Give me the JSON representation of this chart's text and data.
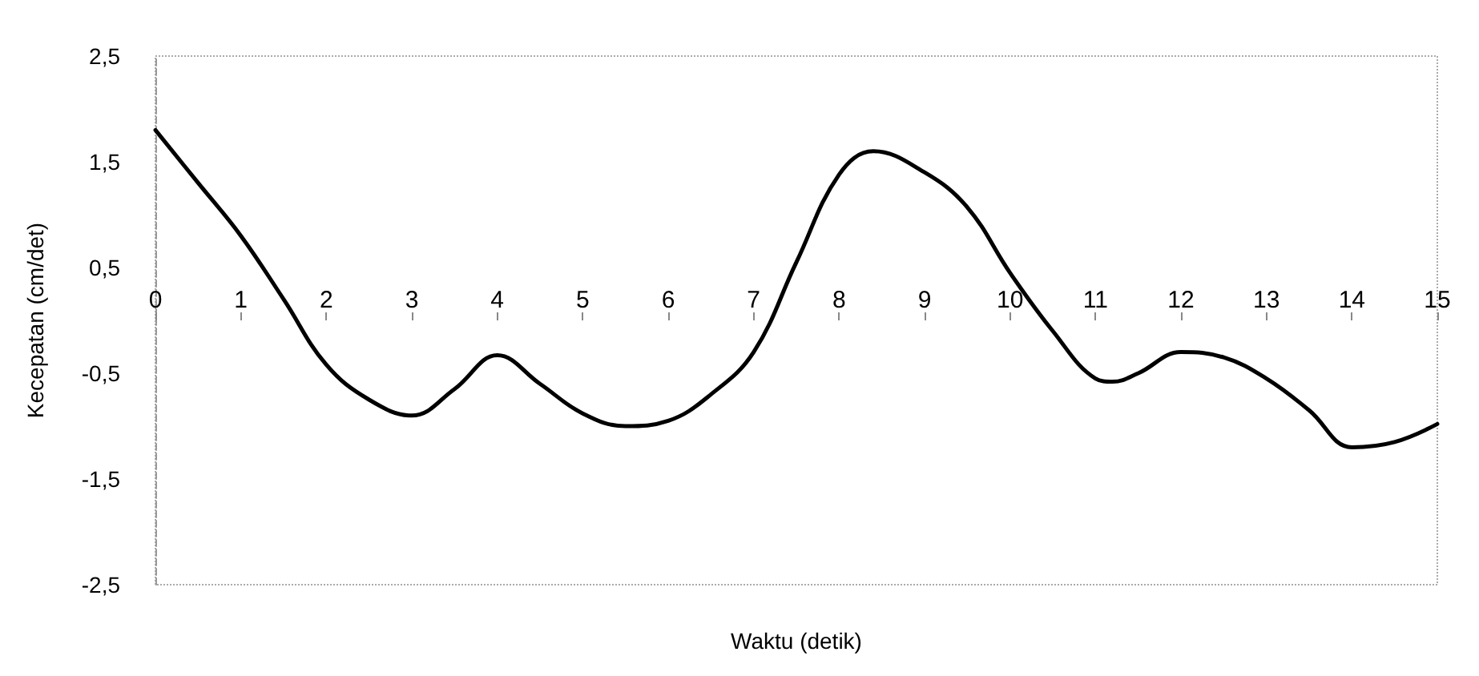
{
  "chart_data": {
    "type": "line",
    "xlabel": "Waktu (detik)",
    "ylabel": "Kecepatan (cm/det)",
    "x": [
      0,
      0.5,
      1,
      1.5,
      2,
      2.5,
      3,
      3.5,
      4,
      4.5,
      5,
      5.5,
      6,
      6.5,
      7,
      7.5,
      8,
      8.4,
      9,
      9.5,
      10,
      10.5,
      11,
      11.2,
      11.5,
      12,
      12.5,
      13,
      13.5,
      14,
      14.5,
      15
    ],
    "series": [
      {
        "color": "#000000",
        "values": [
          1.8,
          1.3,
          0.8,
          0.2,
          -0.42,
          -0.75,
          -0.9,
          -0.65,
          -0.33,
          -0.6,
          -0.88,
          -1.0,
          -0.95,
          -0.7,
          -0.3,
          0.55,
          1.38,
          1.6,
          1.4,
          1.07,
          0.45,
          -0.1,
          -0.55,
          -0.58,
          -0.5,
          -0.3,
          -0.35,
          -0.55,
          -0.85,
          -1.2,
          -1.15,
          -0.98
        ]
      }
    ],
    "xlim": [
      0,
      15
    ],
    "xticks": [
      0,
      1,
      2,
      3,
      4,
      5,
      6,
      7,
      8,
      9,
      10,
      11,
      12,
      13,
      14,
      15
    ],
    "ylim": [
      -2.5,
      2.5
    ],
    "yticks": [
      {
        "value": -2.5,
        "label": "-2,5"
      },
      {
        "value": -1.5,
        "label": "-1,5"
      },
      {
        "value": -0.5,
        "label": "-0,5"
      },
      {
        "value": 0.5,
        "label": "0,5"
      },
      {
        "value": 1.5,
        "label": "1,5"
      },
      {
        "value": 2.5,
        "label": "2,5"
      }
    ],
    "grid": false,
    "marker": "none",
    "line_style": "solid"
  }
}
